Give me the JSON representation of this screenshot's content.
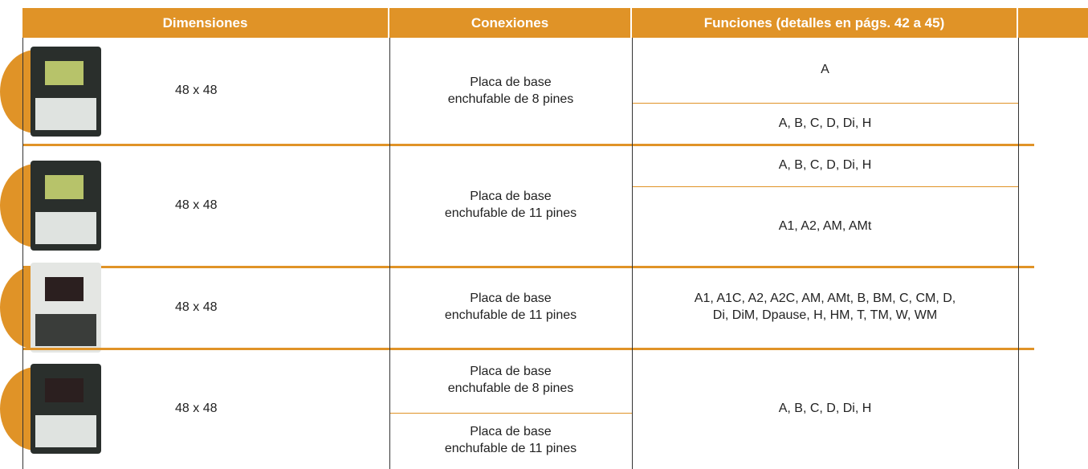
{
  "table": {
    "headers": [
      "Dimensiones",
      "Conexiones",
      "Funciones (detalles en págs. 42 a 45)"
    ],
    "rows": [
      {
        "dimensions": "48 x 48",
        "connections": [
          "Placa de base\nenchufable de 8 pines"
        ],
        "functions": [
          "A",
          "A, B, C, D, Di, H"
        ]
      },
      {
        "dimensions": "48 x 48",
        "connections": [
          "Placa de base\nenchufable de 11 pines"
        ],
        "functions": [
          "A, B, C, D, Di, H",
          "A1, A2, AM, AMt"
        ]
      },
      {
        "dimensions": "48 x 48",
        "connections": [
          "Placa de base\nenchufable de 11 pines"
        ],
        "functions": [
          "A1, A1C, A2, A2C, AM, AMt, B, BM, C, CM, D,\nDi, DiM, Dpause, H, HM, T, TM, W, WM"
        ]
      },
      {
        "dimensions": "48 x 48",
        "connections": [
          "Placa de base\nenchufable de 8 pines",
          "Placa de base\nenchufable de 11 pines"
        ],
        "functions": [
          "A, B, C, D, Di, H"
        ]
      }
    ]
  }
}
